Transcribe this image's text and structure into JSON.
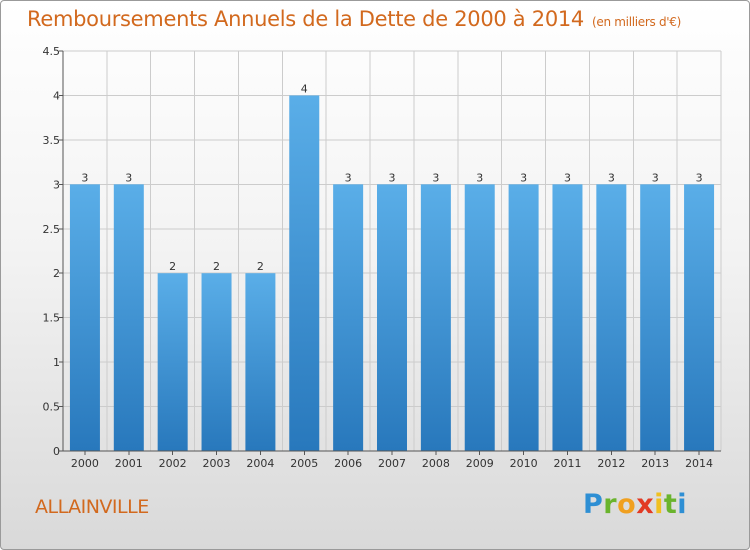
{
  "header": {
    "title": "Remboursements Annuels de la Dette de 2000 à 2014",
    "subtitle": "(en milliers d'€)"
  },
  "footer": {
    "city": "ALLAINVILLE",
    "logo_text": "Proxiti"
  },
  "colors": {
    "title": "#d2691e",
    "bar_light": "#5aaee8",
    "bar_dark": "#2878bc",
    "grid": "#cccccc",
    "axis": "#555555"
  },
  "chart_data": {
    "type": "bar",
    "title": "Remboursements Annuels de la Dette de 2000 à 2014",
    "subtitle": "(en milliers d'€)",
    "xlabel": "",
    "ylabel": "",
    "categories": [
      "2000",
      "2001",
      "2002",
      "2003",
      "2004",
      "2005",
      "2006",
      "2007",
      "2008",
      "2009",
      "2010",
      "2011",
      "2012",
      "2013",
      "2014"
    ],
    "values": [
      3,
      3,
      2,
      2,
      2,
      4,
      3,
      3,
      3,
      3,
      3,
      3,
      3,
      3,
      3
    ],
    "value_labels": [
      "3",
      "3",
      "2",
      "2",
      "2",
      "4",
      "3",
      "3",
      "3",
      "3",
      "3",
      "3",
      "3",
      "3",
      "3"
    ],
    "ylim": [
      0,
      4.5
    ],
    "yticks": [
      0,
      0.5,
      1,
      1.5,
      2,
      2.5,
      3,
      3.5,
      4,
      4.5
    ],
    "ytick_labels": [
      "0",
      "0.5",
      "1",
      "1.5",
      "2",
      "2.5",
      "3",
      "3.5",
      "4",
      "4.5"
    ],
    "grid": true,
    "legend": "none"
  }
}
